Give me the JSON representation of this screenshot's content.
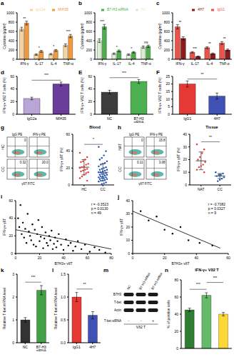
{
  "chart_data": [
    {
      "panel": "a",
      "type": "bar",
      "y_label": "Cytokine (pg/ml)",
      "categories": [
        "IFN-γ",
        "IL-17",
        "IL-4",
        "TNF-α"
      ],
      "series": [
        {
          "name": "IgG2a",
          "color": "#f8d4a2",
          "values": [
            650,
            100,
            110,
            300
          ],
          "errors": [
            40,
            15,
            15,
            30
          ]
        },
        {
          "name": "MIH35",
          "color": "#f39a3c",
          "values": [
            780,
            170,
            190,
            500
          ],
          "errors": [
            40,
            20,
            20,
            35
          ]
        }
      ],
      "annotations": [
        "**",
        "*",
        "*",
        "***"
      ],
      "ylim": [
        0,
        1000
      ],
      "yticks": [
        0,
        200,
        400,
        600,
        800,
        1000
      ],
      "legend": "top-right"
    },
    {
      "panel": "b",
      "type": "bar",
      "y_label": "Cytokine (pg/ml)",
      "categories": [
        "IFN-γ",
        "IL-17",
        "IL-4",
        "TNF-α"
      ],
      "series": [
        {
          "name": "NC",
          "color": "#d9efd0",
          "values": [
            400,
            120,
            100,
            260
          ],
          "errors": [
            40,
            15,
            15,
            25
          ]
        },
        {
          "name": "B7-H3 siRNA",
          "color": "#4cae4c",
          "values": [
            700,
            180,
            150,
            280
          ],
          "errors": [
            50,
            20,
            15,
            25
          ]
        }
      ],
      "annotations": [
        "***",
        "*",
        "*",
        "ns"
      ],
      "ylim": [
        0,
        1000
      ],
      "yticks": [
        0,
        200,
        400,
        600,
        800,
        1000
      ],
      "legend": "top-right"
    },
    {
      "panel": "c",
      "type": "bar",
      "y_label": "Cytokine (pg/ml)",
      "categories": [
        "IFN-γ",
        "IL-17",
        "IL-4",
        "TNF-α"
      ],
      "series": [
        {
          "name": "IgG1",
          "color": "#e8534a",
          "values": [
            700,
            150,
            250,
            350
          ],
          "errors": [
            45,
            15,
            20,
            30
          ]
        },
        {
          "name": "4H7",
          "color": "#8e1b1b",
          "values": [
            450,
            60,
            120,
            200
          ],
          "errors": [
            35,
            10,
            15,
            20
          ]
        }
      ],
      "annotations": [
        "**",
        "***",
        "**",
        "**"
      ],
      "ylim": [
        0,
        1000
      ],
      "yticks": [
        0,
        200,
        400,
        600,
        800,
        1000
      ],
      "legend": "top-right"
    },
    {
      "panel": "d",
      "type": "bar",
      "y_label": "IFN-γ+ Vδ2 T cells (%)",
      "categories": [
        "IgG2a",
        "MIH35"
      ],
      "values": [
        25,
        48
      ],
      "errors": [
        2,
        3
      ],
      "colors": [
        "#b9a6d6",
        "#6a3d9a"
      ],
      "annotations": [
        {
          "between": [
            0,
            1
          ],
          "text": "***"
        }
      ],
      "ylim": [
        0,
        60
      ],
      "yticks": [
        0,
        20,
        40,
        60
      ]
    },
    {
      "panel": "E",
      "type": "bar",
      "y_label": "IFN-γ+ Vδ2 T cells (%)",
      "categories": [
        "NC",
        "B7-H3 siRNA"
      ],
      "values": [
        35,
        52
      ],
      "errors": [
        3,
        3
      ],
      "colors": [
        "#3d3d3d",
        "#4caf50"
      ],
      "annotations": [
        {
          "between": [
            0,
            1
          ],
          "text": "***"
        }
      ],
      "ylim": [
        0,
        60
      ],
      "yticks": [
        0,
        20,
        40,
        60
      ]
    },
    {
      "panel": "F",
      "type": "bar",
      "y_label": "IFN-γ+ Vδ2 T cells (%)",
      "categories": [
        "IgG1",
        "4H7"
      ],
      "values": [
        20,
        12
      ],
      "errors": [
        2,
        2
      ],
      "colors": [
        "#e53935",
        "#3f51b5"
      ],
      "annotations": [
        {
          "between": [
            0,
            1
          ],
          "text": "**"
        }
      ],
      "ylim": [
        0,
        25
      ],
      "yticks": [
        0,
        5,
        10,
        15,
        20,
        25
      ]
    },
    {
      "panel": "g",
      "type": "dot",
      "title": "Blood",
      "y_label": "IFN-γ+ γδT (%)",
      "categories": [
        "HC",
        "CC"
      ],
      "points": [
        [
          38,
          33,
          30,
          28,
          27,
          25,
          24,
          22,
          21,
          20,
          19,
          18,
          17,
          16,
          15,
          14,
          12,
          10,
          8,
          5
        ],
        [
          45,
          40,
          35,
          32,
          30,
          28,
          26,
          25,
          24,
          22,
          21,
          20,
          19,
          18,
          18,
          17,
          16,
          15,
          15,
          14,
          13,
          13,
          12,
          12,
          11,
          10,
          10,
          9,
          9,
          8,
          8,
          7,
          7,
          6,
          5,
          5,
          4,
          3,
          2,
          1
        ]
      ],
      "colors": [
        "#e53935",
        "#1e4fb0"
      ],
      "mean": [
        21,
        15
      ],
      "sd": [
        9,
        10
      ],
      "annotations": [
        {
          "between": [
            0,
            1
          ],
          "text": "*"
        }
      ],
      "ylim": [
        0,
        60
      ],
      "yticks": [
        0,
        20,
        40,
        60
      ]
    },
    {
      "panel": "h",
      "type": "dot",
      "title": "Tissue",
      "y_label": "IFN-γ+ γδT (%)",
      "categories": [
        "NAT",
        "CC"
      ],
      "points": [
        [
          32,
          28,
          25,
          22,
          20,
          18,
          16,
          15,
          14,
          12,
          10
        ],
        [
          10,
          9,
          8,
          8,
          7,
          6,
          5,
          4,
          3
        ]
      ],
      "colors": [
        "#e53935",
        "#1e4fb0"
      ],
      "mean": [
        19,
        7
      ],
      "sd": [
        7,
        2
      ],
      "annotations": [
        {
          "between": [
            0,
            1
          ],
          "text": "**"
        }
      ],
      "ylim": [
        0,
        40
      ],
      "yticks": [
        0,
        10,
        20,
        30,
        40
      ]
    },
    {
      "panel": "i",
      "type": "scatter",
      "x_label": "B7H3+ γδT",
      "y_label": "IFN-γ+ γδT",
      "points": [
        [
          2,
          40
        ],
        [
          3,
          30
        ],
        [
          4,
          55
        ],
        [
          5,
          22
        ],
        [
          6,
          35
        ],
        [
          7,
          18
        ],
        [
          8,
          28
        ],
        [
          9,
          12
        ],
        [
          10,
          45
        ],
        [
          11,
          25
        ],
        [
          12,
          20
        ],
        [
          13,
          15
        ],
        [
          14,
          33
        ],
        [
          15,
          10
        ],
        [
          16,
          27
        ],
        [
          17,
          8
        ],
        [
          18,
          22
        ],
        [
          19,
          38
        ],
        [
          20,
          14
        ],
        [
          21,
          19
        ],
        [
          22,
          30
        ],
        [
          23,
          6
        ],
        [
          24,
          17
        ],
        [
          25,
          24
        ],
        [
          26,
          12
        ],
        [
          27,
          9
        ],
        [
          28,
          20
        ],
        [
          29,
          15
        ],
        [
          30,
          26
        ],
        [
          31,
          5
        ],
        [
          32,
          11
        ],
        [
          33,
          18
        ],
        [
          34,
          7
        ],
        [
          35,
          14
        ],
        [
          36,
          22
        ],
        [
          38,
          10
        ],
        [
          40,
          4
        ],
        [
          42,
          16
        ],
        [
          44,
          9
        ],
        [
          46,
          12
        ],
        [
          48,
          3
        ],
        [
          50,
          8
        ],
        [
          52,
          14
        ],
        [
          55,
          5
        ],
        [
          58,
          10
        ],
        [
          62,
          2
        ],
        [
          66,
          7
        ],
        [
          70,
          4
        ],
        [
          75,
          1
        ]
      ],
      "fit": {
        "x": [
          0,
          80
        ],
        "y": [
          27,
          5
        ]
      },
      "stats": [
        "r = -0.3523",
        "p = 0.0130",
        "n = 49"
      ],
      "xlim": [
        0,
        80
      ],
      "xticks": [
        0,
        20,
        40,
        60,
        80
      ],
      "ylim": [
        0,
        60
      ],
      "yticks": [
        0,
        20,
        40,
        60
      ]
    },
    {
      "panel": "j",
      "type": "scatter",
      "x_label": "B7H3+ γδT",
      "y_label": "IFN-γ+ γδT",
      "points": [
        [
          5,
          32
        ],
        [
          10,
          25
        ],
        [
          15,
          28
        ],
        [
          20,
          18
        ],
        [
          25,
          15
        ],
        [
          30,
          20
        ],
        [
          35,
          10
        ],
        [
          42,
          8
        ],
        [
          50,
          6
        ]
      ],
      "fit": {
        "x": [
          0,
          55
        ],
        "y": [
          32,
          4
        ]
      },
      "stats": [
        "r = -0.7082",
        "p = 0.0327",
        "n = 9"
      ],
      "xlim": [
        0,
        60
      ],
      "xticks": [
        0,
        20,
        40,
        60
      ],
      "ylim": [
        0,
        40
      ],
      "yticks": [
        0,
        10,
        20,
        30,
        40
      ]
    },
    {
      "panel": "k",
      "type": "bar",
      "y_label": "Relative T-bet mRNA level",
      "categories": [
        "NC",
        "B7-H3 siRNA"
      ],
      "values": [
        1,
        2.3
      ],
      "errors": [
        0.1,
        0.2
      ],
      "colors": [
        "#333333",
        "#43a047"
      ],
      "annotations": [
        {
          "between": [
            0,
            1
          ],
          "text": "***"
        }
      ],
      "ylim": [
        0,
        3
      ],
      "yticks": [
        0,
        1,
        2,
        3
      ]
    },
    {
      "panel": "l",
      "type": "bar",
      "y_label": "Relative T-bet mRNA level",
      "categories": [
        "IgG1",
        "4H7"
      ],
      "values": [
        1,
        0.6
      ],
      "errors": [
        0.1,
        0.08
      ],
      "colors": [
        "#e53935",
        "#3f51b5"
      ],
      "annotations": [
        {
          "between": [
            0,
            1
          ],
          "text": "**"
        }
      ],
      "ylim": [
        0,
        1.5
      ],
      "yticks": [
        {
          "value": 0,
          "label": "0.0"
        },
        0.5,
        {
          "value": 1,
          "label": "1.0"
        },
        1.5
      ]
    },
    {
      "panel": "n",
      "type": "bar",
      "title": "IFN-γ+ Vδ2 T",
      "y_label": "% of positive cells",
      "categories": [
        null,
        null,
        null
      ],
      "values": [
        45,
        62,
        40
      ],
      "errors": [
        2,
        3,
        2
      ],
      "colors": [
        "#2e7d32",
        "#66bb6a",
        "#fdd835"
      ],
      "annotations": [
        {
          "between": [
            0,
            1
          ],
          "text": "***"
        },
        {
          "between": [
            1,
            2
          ],
          "text": "***"
        }
      ],
      "ylim": [
        0,
        80
      ],
      "yticks": [
        0,
        20,
        40,
        60,
        80
      ],
      "tick_labels": "y"
    }
  ],
  "flow_plots": [
    {
      "columns": [
        "IgG PE",
        "IFN-γ PE"
      ],
      "rows": [
        "HC",
        "CC"
      ],
      "gates": [
        [
          "0",
          null
        ],
        [
          "0.32",
          "20.0"
        ]
      ],
      "x_label": "γδT FITC"
    },
    {
      "columns": [
        "IgG PE",
        "IFN-γ PE"
      ],
      "rows": [
        "NAT",
        "CC"
      ],
      "gates": [
        [
          "0",
          "15.8"
        ],
        [
          "0.11",
          "3.08"
        ]
      ],
      "x_label": "γδT FITC"
    }
  ],
  "western_blot": {
    "panel": "m",
    "lanes": [
      "NC",
      "B7-H3 siRNA",
      "B7-H3 siRNA"
    ],
    "bands": [
      "B7H3",
      "T-bet",
      "Actin"
    ],
    "treatment": {
      "label": "T-bet siRNA",
      "values": [
        "-",
        "-",
        "+"
      ]
    },
    "cell": "Vδ2 T"
  }
}
